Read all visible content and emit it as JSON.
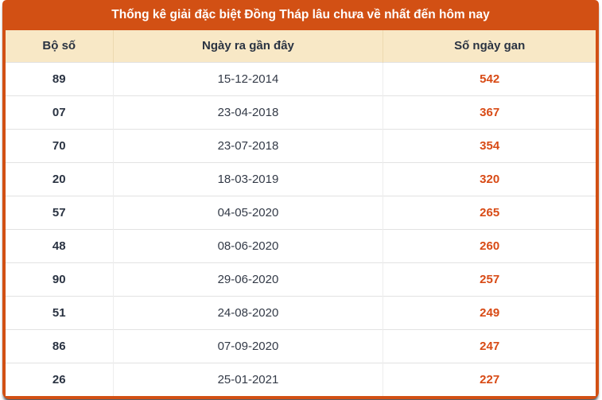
{
  "title": "Thống kê giải đặc biệt Đồng Tháp lâu chưa về nhất đến hôm nay",
  "table": {
    "columns": [
      "Bộ số",
      "Ngày ra gần đây",
      "Số ngày gan"
    ],
    "rows": [
      {
        "bo_so": "89",
        "ngay": "15-12-2014",
        "gan": "542"
      },
      {
        "bo_so": "07",
        "ngay": "23-04-2018",
        "gan": "367"
      },
      {
        "bo_so": "70",
        "ngay": "23-07-2018",
        "gan": "354"
      },
      {
        "bo_so": "20",
        "ngay": "18-03-2019",
        "gan": "320"
      },
      {
        "bo_so": "57",
        "ngay": "04-05-2020",
        "gan": "265"
      },
      {
        "bo_so": "48",
        "ngay": "08-06-2020",
        "gan": "260"
      },
      {
        "bo_so": "90",
        "ngay": "29-06-2020",
        "gan": "257"
      },
      {
        "bo_so": "51",
        "ngay": "24-08-2020",
        "gan": "249"
      },
      {
        "bo_so": "86",
        "ngay": "07-09-2020",
        "gan": "247"
      },
      {
        "bo_so": "26",
        "ngay": "25-01-2021",
        "gan": "227"
      }
    ]
  },
  "colors": {
    "accent_orange": "#d25014",
    "header_cream": "#f8e8c6",
    "text_dark": "#2a3342",
    "gan_value_orange": "#d84a15",
    "title_text": "#ffffff",
    "row_divider": "#e2e2e2"
  }
}
